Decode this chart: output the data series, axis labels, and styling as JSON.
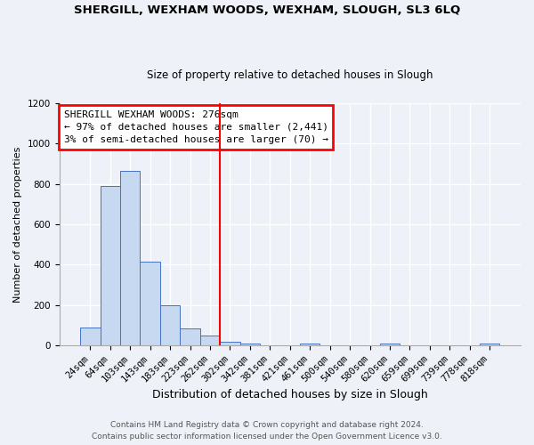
{
  "title": "SHERGILL, WEXHAM WOODS, WEXHAM, SLOUGH, SL3 6LQ",
  "subtitle": "Size of property relative to detached houses in Slough",
  "xlabel": "Distribution of detached houses by size in Slough",
  "ylabel": "Number of detached properties",
  "bar_labels": [
    "24sqm",
    "64sqm",
    "103sqm",
    "143sqm",
    "183sqm",
    "223sqm",
    "262sqm",
    "302sqm",
    "342sqm",
    "381sqm",
    "421sqm",
    "461sqm",
    "500sqm",
    "540sqm",
    "580sqm",
    "620sqm",
    "659sqm",
    "699sqm",
    "739sqm",
    "778sqm",
    "818sqm"
  ],
  "bar_values": [
    90,
    790,
    865,
    415,
    200,
    85,
    50,
    20,
    10,
    0,
    0,
    10,
    0,
    0,
    0,
    10,
    0,
    0,
    0,
    0,
    10
  ],
  "bar_color": "#c6d9f0",
  "bar_edge_color": "#4472c4",
  "vline_index": 7,
  "vline_color": "red",
  "annotation_title": "SHERGILL WEXHAM WOODS: 276sqm",
  "annotation_line1": "← 97% of detached houses are smaller (2,441)",
  "annotation_line2": "3% of semi-detached houses are larger (70) →",
  "annotation_box_color": "white",
  "annotation_box_edge": "red",
  "ylim": [
    0,
    1200
  ],
  "yticks": [
    0,
    200,
    400,
    600,
    800,
    1000,
    1200
  ],
  "footer1": "Contains HM Land Registry data © Crown copyright and database right 2024.",
  "footer2": "Contains public sector information licensed under the Open Government Licence v3.0.",
  "bg_color": "#eef2f8",
  "title_fontsize": 9.5,
  "subtitle_fontsize": 8.5,
  "xlabel_fontsize": 9,
  "ylabel_fontsize": 8,
  "tick_fontsize": 7.5,
  "footer_fontsize": 6.5
}
